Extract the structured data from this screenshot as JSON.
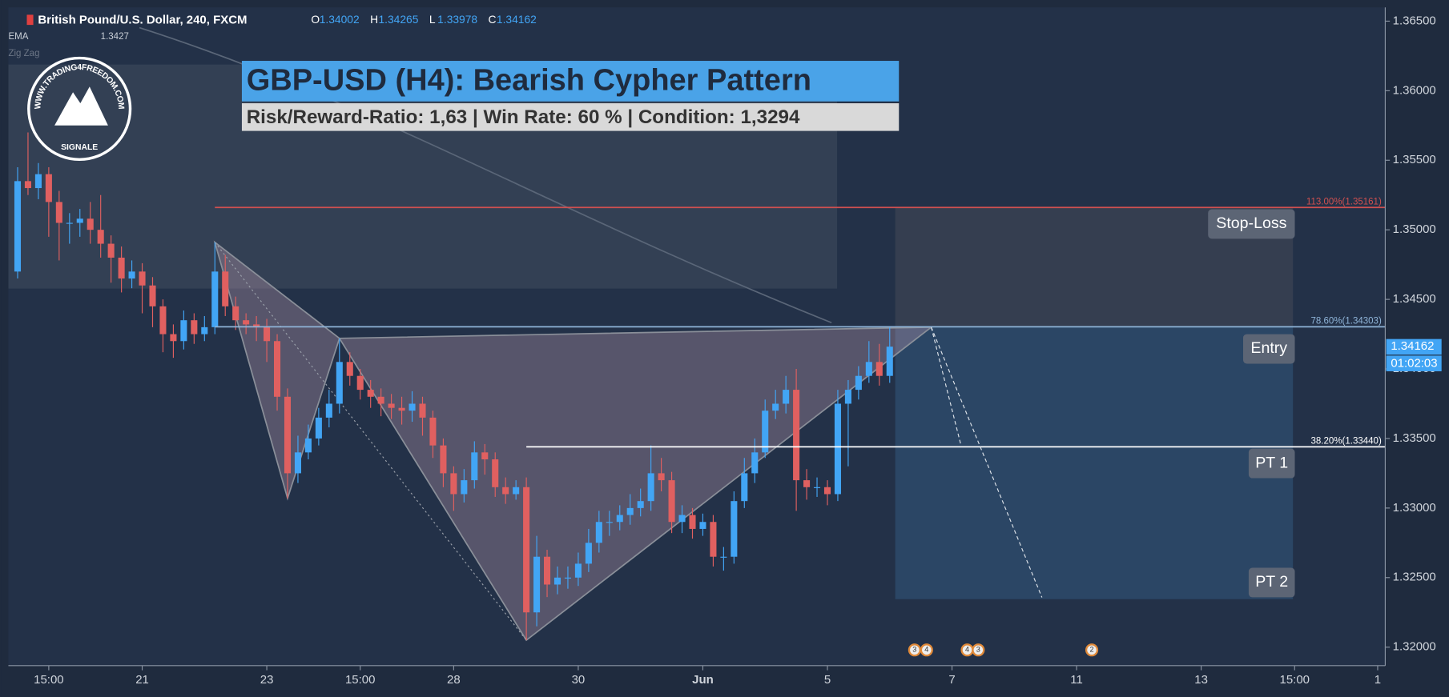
{
  "header": {
    "symbol": "British Pound/U.S. Dollar, 240, FXCM",
    "ohlc": [
      {
        "key": "O",
        "value": "1.34002"
      },
      {
        "key": "H",
        "value": "1.34265"
      },
      {
        "key": "L",
        "value": "1.33978"
      },
      {
        "key": "C",
        "value": "1.34162"
      }
    ],
    "indicators": [
      {
        "name": "EMA",
        "value": "1.3427"
      },
      {
        "name": "Zig Zag",
        "value": null
      }
    ]
  },
  "logo": {
    "url": "WWW.TRADING4FREEDOM.COM",
    "label": "SIGNALE"
  },
  "chart_data": {
    "type": "candlestick",
    "title": "GBP-USD (H4): Bearish Cypher Pattern",
    "subtitle": "Risk/Reward-Ratio: 1,63 | Win Rate: 60 % | Condition: 1,3294",
    "up_color": "#42a5f5",
    "down_color": "#e06060",
    "x": [
      0,
      1,
      2,
      3,
      4,
      5,
      6,
      7,
      8,
      9,
      10,
      11,
      12,
      13,
      14,
      15,
      16,
      17,
      18,
      19,
      20,
      21,
      22,
      23,
      24,
      25,
      26,
      27,
      28,
      29,
      30,
      31,
      32,
      33,
      34,
      35,
      36,
      37,
      38,
      39,
      40,
      41,
      42,
      43,
      44,
      45,
      46,
      47,
      48,
      49,
      50,
      51,
      52,
      53,
      54,
      55,
      56,
      57,
      58,
      59,
      60,
      61,
      62,
      63,
      64,
      65,
      66,
      67,
      68,
      69,
      70,
      71,
      72,
      73,
      74,
      75,
      76,
      77,
      78,
      79,
      80,
      81,
      82,
      83,
      84
    ],
    "open": [
      1.347,
      1.3535,
      1.353,
      1.354,
      1.352,
      1.3505,
      1.3505,
      1.3508,
      1.35,
      1.349,
      1.348,
      1.3465,
      1.347,
      1.346,
      1.3445,
      1.3425,
      1.342,
      1.3435,
      1.3425,
      1.343,
      1.347,
      1.3445,
      1.3435,
      1.3432,
      1.343,
      1.342,
      1.338,
      1.3325,
      1.334,
      1.335,
      1.3365,
      1.3375,
      1.3405,
      1.3395,
      1.3385,
      1.338,
      1.3375,
      1.3372,
      1.337,
      1.3375,
      1.3365,
      1.3345,
      1.3325,
      1.331,
      1.332,
      1.334,
      1.3335,
      1.3315,
      1.331,
      1.3315,
      1.3225,
      1.3265,
      1.3245,
      1.325,
      1.325,
      1.326,
      1.3275,
      1.329,
      1.329,
      1.3295,
      1.33,
      1.3305,
      1.3325,
      1.332,
      1.329,
      1.3295,
      1.3285,
      1.329,
      1.3265,
      1.3265,
      1.3305,
      1.3325,
      1.334,
      1.337,
      1.3375,
      1.3385,
      1.332,
      1.3315,
      1.3315,
      1.331,
      1.3375,
      1.3385,
      1.3395,
      1.3405,
      1.3395
    ],
    "high": [
      1.3545,
      1.357,
      1.3548,
      1.3545,
      1.3528,
      1.3512,
      1.3515,
      1.352,
      1.3525,
      1.3496,
      1.3488,
      1.3478,
      1.3476,
      1.3466,
      1.345,
      1.3432,
      1.3442,
      1.344,
      1.3438,
      1.3491,
      1.3482,
      1.3452,
      1.344,
      1.3438,
      1.3436,
      1.3425,
      1.3386,
      1.3352,
      1.336,
      1.3372,
      1.3385,
      1.3422,
      1.3412,
      1.34,
      1.3392,
      1.3386,
      1.3382,
      1.338,
      1.3384,
      1.338,
      1.337,
      1.335,
      1.333,
      1.3328,
      1.3348,
      1.3346,
      1.334,
      1.3322,
      1.332,
      1.3322,
      1.328,
      1.327,
      1.3258,
      1.3258,
      1.3268,
      1.3285,
      1.3298,
      1.3298,
      1.3302,
      1.331,
      1.3314,
      1.3345,
      1.3336,
      1.3326,
      1.3302,
      1.33,
      1.3296,
      1.3295,
      1.3272,
      1.3312,
      1.3336,
      1.335,
      1.3378,
      1.3385,
      1.3395,
      1.34,
      1.3328,
      1.3322,
      1.332,
      1.3385,
      1.3392,
      1.3402,
      1.342,
      1.3418,
      1.343
    ],
    "low": [
      1.3465,
      1.3525,
      1.3522,
      1.3495,
      1.3478,
      1.349,
      1.3495,
      1.349,
      1.348,
      1.3462,
      1.3455,
      1.3458,
      1.344,
      1.343,
      1.3412,
      1.3408,
      1.3414,
      1.3418,
      1.342,
      1.3425,
      1.3438,
      1.3428,
      1.3425,
      1.342,
      1.3405,
      1.337,
      1.3307,
      1.3318,
      1.3335,
      1.3345,
      1.3358,
      1.3368,
      1.3388,
      1.3378,
      1.3372,
      1.3366,
      1.3364,
      1.336,
      1.3362,
      1.3352,
      1.3336,
      1.3315,
      1.3298,
      1.3304,
      1.3314,
      1.3324,
      1.3308,
      1.3303,
      1.3306,
      1.3205,
      1.3215,
      1.3236,
      1.3238,
      1.3242,
      1.3244,
      1.3254,
      1.3268,
      1.328,
      1.3284,
      1.3288,
      1.3294,
      1.3298,
      1.3312,
      1.3282,
      1.3282,
      1.3278,
      1.328,
      1.3258,
      1.3255,
      1.326,
      1.33,
      1.3318,
      1.3336,
      1.3364,
      1.3368,
      1.3298,
      1.3306,
      1.3308,
      1.3302,
      1.3305,
      1.333,
      1.3378,
      1.339,
      1.3388,
      1.339
    ],
    "close": [
      1.3535,
      1.353,
      1.354,
      1.352,
      1.3505,
      1.3505,
      1.3508,
      1.35,
      1.349,
      1.348,
      1.3465,
      1.347,
      1.346,
      1.3445,
      1.3425,
      1.342,
      1.3435,
      1.3425,
      1.343,
      1.347,
      1.3445,
      1.3435,
      1.3432,
      1.343,
      1.342,
      1.338,
      1.3325,
      1.334,
      1.335,
      1.3365,
      1.3375,
      1.3405,
      1.3395,
      1.3385,
      1.338,
      1.3375,
      1.3372,
      1.337,
      1.3375,
      1.3365,
      1.3345,
      1.3325,
      1.331,
      1.332,
      1.334,
      1.3335,
      1.3315,
      1.331,
      1.3315,
      1.3225,
      1.3265,
      1.3245,
      1.325,
      1.325,
      1.326,
      1.3275,
      1.329,
      1.329,
      1.3295,
      1.33,
      1.3305,
      1.3325,
      1.332,
      1.329,
      1.3295,
      1.3285,
      1.329,
      1.3265,
      1.3265,
      1.3305,
      1.3325,
      1.334,
      1.337,
      1.3375,
      1.3385,
      1.332,
      1.3315,
      1.3315,
      1.331,
      1.3375,
      1.3385,
      1.3395,
      1.3405,
      1.3395,
      1.3416
    ],
    "pattern": {
      "x": [
        19,
        26,
        31,
        49,
        88
      ],
      "y": [
        1.3491,
        1.3307,
        1.3422,
        1.3205,
        1.343
      ]
    },
    "fib_levels": [
      {
        "label": "113.00%(1.35161)",
        "value": 1.35161,
        "color": "#d05050"
      },
      {
        "label": "78.60%(1.34303)",
        "value": 1.34303,
        "color": "#8fb4d8"
      },
      {
        "label": "38.20%(1.33440)",
        "value": 1.3344,
        "color": "#ffffff"
      }
    ],
    "targets": [
      {
        "name": "Stop-Loss",
        "value": 1.35161
      },
      {
        "name": "Entry",
        "value": 1.34303
      },
      {
        "name": "PT 1",
        "value": 1.3344
      },
      {
        "name": "PT 2",
        "value": 1.32345
      }
    ],
    "last_price": {
      "value": 1.34162,
      "label": "1.34162"
    },
    "countdown": "01:02:03",
    "event_badges": [
      "3",
      "4",
      "4",
      "3",
      "2"
    ],
    "xlim": [
      -0.89,
      131.73
    ],
    "xticks": [
      {
        "value": 3,
        "label": "15:00"
      },
      {
        "value": 12,
        "label": "21"
      },
      {
        "value": 24,
        "label": "23"
      },
      {
        "value": 33,
        "label": "15:00"
      },
      {
        "value": 42,
        "label": "28"
      },
      {
        "value": 54,
        "label": "30"
      },
      {
        "value": 66,
        "label": "Jun"
      },
      {
        "value": 78,
        "label": "5"
      },
      {
        "value": 90,
        "label": "7"
      },
      {
        "value": 102,
        "label": "11"
      },
      {
        "value": 114,
        "label": "13"
      },
      {
        "value": 123,
        "label": "15:00"
      },
      {
        "value": 131,
        "label": "1"
      }
    ],
    "ylim": [
      1.31867,
      1.36599
    ],
    "yticks": [
      {
        "value": 1.32,
        "label": "1.32000"
      },
      {
        "value": 1.325,
        "label": "1.32500"
      },
      {
        "value": 1.33,
        "label": "1.33000"
      },
      {
        "value": 1.335,
        "label": "1.33500"
      },
      {
        "value": 1.34,
        "label": "1.34000"
      },
      {
        "value": 1.345,
        "label": "1.34500"
      },
      {
        "value": 1.35,
        "label": "1.35000"
      },
      {
        "value": 1.355,
        "label": "1.35500"
      },
      {
        "value": 1.36,
        "label": "1.36000"
      },
      {
        "value": 1.365,
        "label": "1.36500"
      }
    ]
  }
}
